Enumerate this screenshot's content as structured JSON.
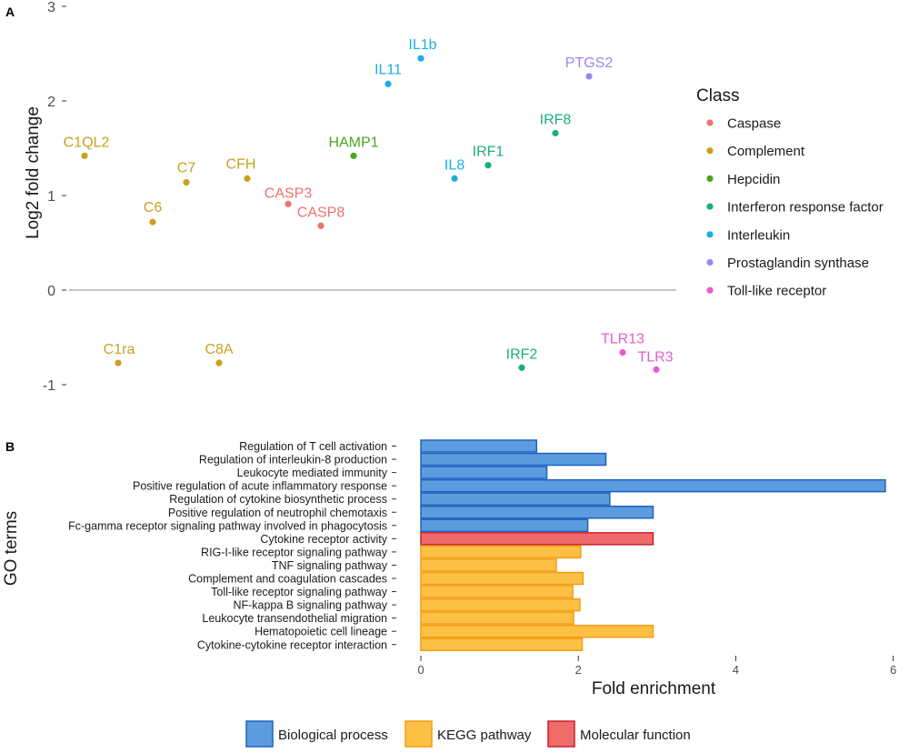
{
  "figure": {
    "panel_a_label": "A",
    "panel_b_label": "B"
  },
  "chart_data": [
    {
      "type": "scatter",
      "title": "",
      "xlabel": "",
      "ylabel": "Log2 fold change",
      "ylim": [
        -1.2,
        3.0
      ],
      "yticks": [
        -1,
        0,
        1,
        2,
        3
      ],
      "x_axis_visible": false,
      "reference_line_y": 0,
      "legend_title": "Class",
      "legend_position": "right",
      "classes": [
        {
          "name": "Caspase",
          "color": "#f0716d"
        },
        {
          "name": "Complement",
          "color": "#c9a01d"
        },
        {
          "name": "Hepcidin",
          "color": "#49a61e"
        },
        {
          "name": "Interferon response factor",
          "color": "#1aaf7f"
        },
        {
          "name": "Interleukin",
          "color": "#1baee4"
        },
        {
          "name": "Prostaglandin synthase",
          "color": "#9f86f5"
        },
        {
          "name": "Toll-like receptor",
          "color": "#ea5ad3"
        }
      ],
      "points": [
        {
          "label": "C1QL2",
          "x": 1,
          "y": 1.42,
          "class": "Complement"
        },
        {
          "label": "C6",
          "x": 3,
          "y": 0.72,
          "class": "Complement"
        },
        {
          "label": "C7",
          "x": 4,
          "y": 1.14,
          "class": "Complement"
        },
        {
          "label": "CFH",
          "x": 6,
          "y": 1.18,
          "class": "Complement"
        },
        {
          "label": "C1ra",
          "x": 2,
          "y": -0.77,
          "class": "Complement"
        },
        {
          "label": "C8A",
          "x": 5,
          "y": -0.77,
          "class": "Complement"
        },
        {
          "label": "CASP3",
          "x": 7,
          "y": 0.91,
          "class": "Caspase"
        },
        {
          "label": "CASP8",
          "x": 8,
          "y": 0.68,
          "class": "Caspase"
        },
        {
          "label": "HAMP1",
          "x": 9,
          "y": 1.42,
          "class": "Hepcidin"
        },
        {
          "label": "IL11",
          "x": 10,
          "y": 2.18,
          "class": "Interleukin"
        },
        {
          "label": "IL1b",
          "x": 11,
          "y": 2.45,
          "class": "Interleukin"
        },
        {
          "label": "IL8",
          "x": 12,
          "y": 1.18,
          "class": "Interleukin"
        },
        {
          "label": "IRF1",
          "x": 13,
          "y": 1.32,
          "class": "Interferon response factor"
        },
        {
          "label": "IRF2",
          "x": 14,
          "y": -0.82,
          "class": "Interferon response factor"
        },
        {
          "label": "IRF8",
          "x": 15,
          "y": 1.66,
          "class": "Interferon response factor"
        },
        {
          "label": "PTGS2",
          "x": 16,
          "y": 2.26,
          "class": "Prostaglandin synthase"
        },
        {
          "label": "TLR13",
          "x": 17,
          "y": -0.66,
          "class": "Toll-like receptor"
        },
        {
          "label": "TLR3",
          "x": 18,
          "y": -0.84,
          "class": "Toll-like receptor"
        }
      ]
    },
    {
      "type": "bar",
      "orientation": "horizontal",
      "title": "",
      "xlabel": "Fold enrichment",
      "ylabel": "GO terms",
      "xlim": [
        0,
        6
      ],
      "xticks": [
        0,
        2,
        4,
        6
      ],
      "legend_position": "bottom",
      "groups": [
        {
          "name": "Biological process",
          "fill": "#5b9bde",
          "stroke": "#1f63c0"
        },
        {
          "name": "KEGG pathway",
          "fill": "#fcc044",
          "stroke": "#f29e12"
        },
        {
          "name": "Molecular function",
          "fill": "#ef6b6b",
          "stroke": "#c8202d"
        }
      ],
      "bars": [
        {
          "term": "Regulation of T cell activation",
          "value": 1.47,
          "group": "Biological process"
        },
        {
          "term": "Regulation of interleukin-8 production",
          "value": 2.35,
          "group": "Biological process"
        },
        {
          "term": "Leukocyte mediated immunity",
          "value": 1.6,
          "group": "Biological process"
        },
        {
          "term": "Positive regulation of acute inflammatory response",
          "value": 5.9,
          "group": "Biological process"
        },
        {
          "term": "Regulation of cytokine biosynthetic process",
          "value": 2.4,
          "group": "Biological process"
        },
        {
          "term": "Positive regulation of neutrophil chemotaxis",
          "value": 2.95,
          "group": "Biological process"
        },
        {
          "term": "Fc-gamma receptor signaling pathway involved in phagocytosis",
          "value": 2.12,
          "group": "Biological process"
        },
        {
          "term": "Cytokine receptor activity",
          "value": 2.95,
          "group": "Molecular function"
        },
        {
          "term": "RIG-I-like receptor signaling pathway",
          "value": 2.03,
          "group": "KEGG pathway"
        },
        {
          "term": "TNF signaling pathway",
          "value": 1.72,
          "group": "KEGG pathway"
        },
        {
          "term": "Complement and coagulation cascades",
          "value": 2.06,
          "group": "KEGG pathway"
        },
        {
          "term": "Toll-like receptor signaling pathway",
          "value": 1.93,
          "group": "KEGG pathway"
        },
        {
          "term": "NF-kappa B signaling pathway",
          "value": 2.02,
          "group": "KEGG pathway"
        },
        {
          "term": "Leukocyte transendothelial migration",
          "value": 1.94,
          "group": "KEGG pathway"
        },
        {
          "term": "Hematopoietic cell lineage",
          "value": 2.95,
          "group": "KEGG pathway"
        },
        {
          "term": "Cytokine-cytokine receptor interaction",
          "value": 2.05,
          "group": "KEGG pathway"
        }
      ]
    }
  ]
}
